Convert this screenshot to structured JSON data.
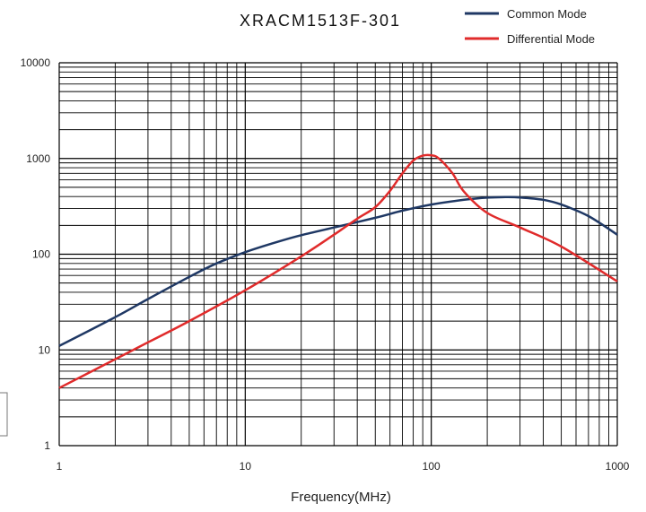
{
  "chart_data": {
    "type": "line",
    "title": "XRACM1513F-301",
    "xlabel": "Frequency(MHz)",
    "ylabel": "",
    "x_scale": "log",
    "y_scale": "log",
    "xlim": [
      1,
      1000
    ],
    "ylim": [
      1,
      10000
    ],
    "x_ticks": [
      "1",
      "10",
      "100",
      "1000"
    ],
    "y_ticks": [
      "1",
      "10",
      "100",
      "1000",
      "10000"
    ],
    "grid": true,
    "legend_position": "top-right",
    "series": [
      {
        "name": "Common Mode",
        "color": "#1f3864",
        "x": [
          1,
          2,
          3,
          5,
          7,
          10,
          15,
          20,
          30,
          50,
          70,
          100,
          150,
          200,
          250,
          300,
          400,
          500,
          700,
          1000
        ],
        "y": [
          11,
          22,
          34,
          58,
          80,
          105,
          135,
          158,
          190,
          240,
          285,
          330,
          370,
          390,
          395,
          392,
          370,
          330,
          250,
          160
        ]
      },
      {
        "name": "Differential Mode",
        "color": "#e02b2b",
        "x": [
          1,
          2,
          3,
          5,
          10,
          20,
          30,
          40,
          50,
          60,
          70,
          80,
          90,
          100,
          110,
          130,
          150,
          200,
          300,
          500,
          1000
        ],
        "y": [
          4,
          8,
          12,
          20,
          42,
          95,
          160,
          235,
          310,
          460,
          700,
          950,
          1070,
          1080,
          1000,
          700,
          450,
          270,
          190,
          120,
          52
        ]
      }
    ]
  }
}
